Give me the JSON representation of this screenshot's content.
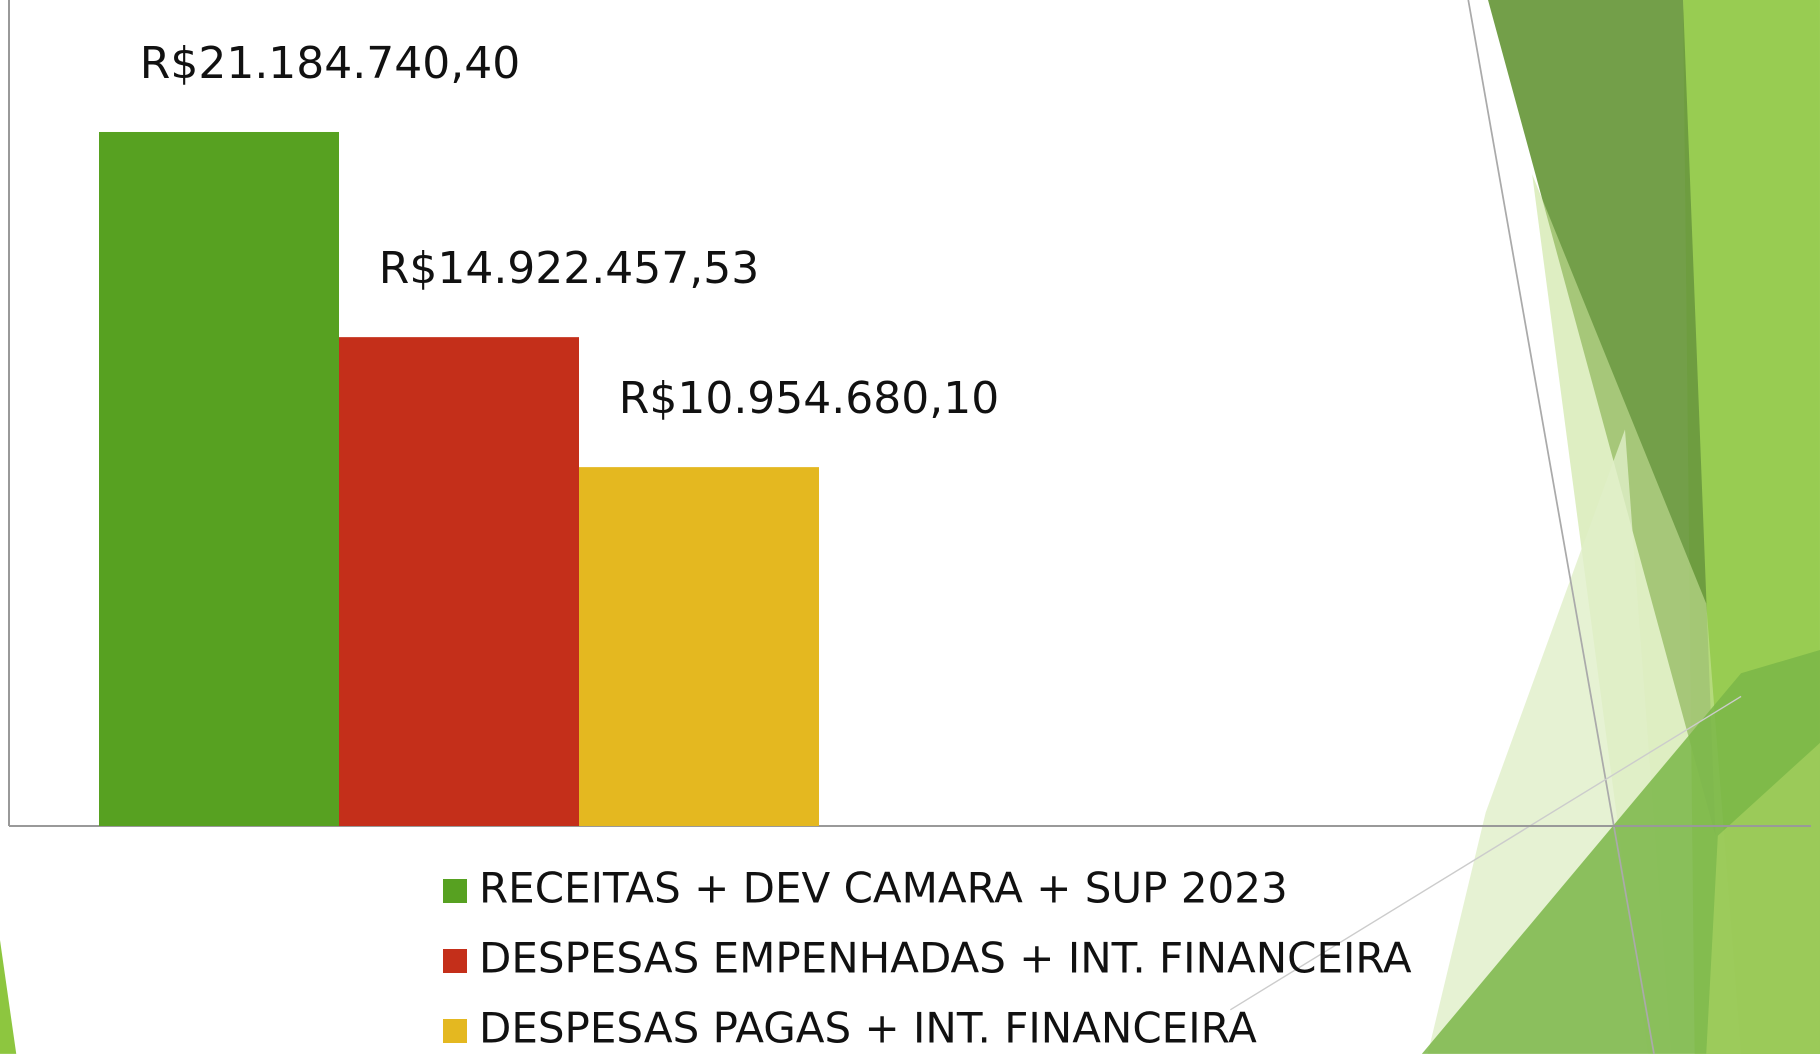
{
  "chart_data": {
    "type": "bar",
    "series": [
      {
        "name": "RECEITAS + DEV CAMARA + SUP 2023",
        "color": "#57a121",
        "values": [
          21184740.4
        ],
        "value_labels": [
          "R$21.184.740,40"
        ]
      },
      {
        "name": "DESPESAS EMPENHADAS + INT. FINANCEIRA",
        "color": "#c42f1a",
        "values": [
          14922457.53
        ],
        "value_labels": [
          "R$14.922.457,53"
        ]
      },
      {
        "name": "DESPESAS PAGAS + INT. FINANCEIRA",
        "color": "#e4b820",
        "values": [
          10954680.1
        ],
        "value_labels": [
          "R$10.954.680,10"
        ]
      }
    ],
    "ylim": [
      0,
      25000000
    ],
    "legend": "bottom"
  }
}
